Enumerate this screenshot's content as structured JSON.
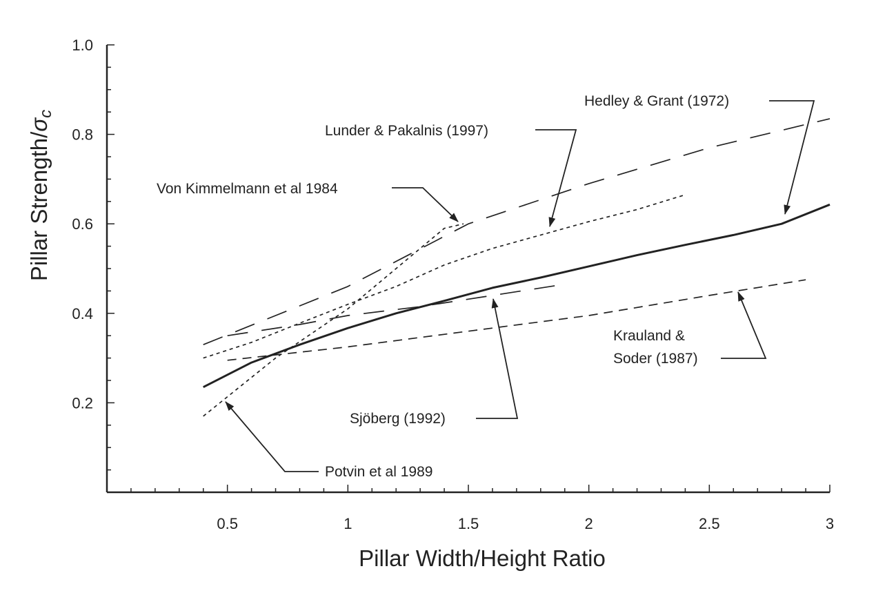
{
  "chart_data": {
    "type": "line",
    "xlabel": "Pillar Width/Height Ratio",
    "ylabel": "Pillar Strength/",
    "ylabel_symbol": "σ",
    "ylabel_subscript": "c",
    "xlim": [
      0,
      3
    ],
    "ylim": [
      0,
      1.0
    ],
    "x_ticks": [
      0.5,
      1,
      1.5,
      2,
      2.5,
      3
    ],
    "x_tick_labels": [
      "0.5",
      "1",
      "1.5",
      "2",
      "2.5",
      "3"
    ],
    "y_ticks": [
      0.2,
      0.4,
      0.6,
      0.8,
      1.0
    ],
    "y_tick_labels": [
      "0.2",
      "0.4",
      "0.6",
      "0.8",
      "1.0"
    ],
    "grid": false,
    "legend": "none",
    "series": [
      {
        "name": "Hedley & Grant (1972)",
        "style": "solid",
        "x": [
          0.4,
          0.6,
          0.8,
          1.0,
          1.2,
          1.4,
          1.6,
          1.8,
          2.0,
          2.2,
          2.4,
          2.6,
          2.8,
          3.0
        ],
        "y": [
          0.235,
          0.29,
          0.33,
          0.367,
          0.4,
          0.428,
          0.457,
          0.48,
          0.505,
          0.53,
          0.553,
          0.575,
          0.6,
          0.643
        ]
      },
      {
        "name": "Lunder & Pakalnis (1997)",
        "style": "short-dash",
        "x": [
          0.4,
          0.6,
          0.8,
          1.0,
          1.2,
          1.4,
          1.6,
          1.8,
          2.0,
          2.2,
          2.4
        ],
        "y": [
          0.3,
          0.335,
          0.378,
          0.42,
          0.46,
          0.508,
          0.545,
          0.575,
          0.605,
          0.632,
          0.665
        ]
      },
      {
        "name": "Von Kimmelmann et al 1984",
        "style": "long-dash",
        "x": [
          0.4,
          1.0,
          1.5,
          2.0,
          2.5,
          3.0
        ],
        "y": [
          0.33,
          0.46,
          0.6,
          0.69,
          0.77,
          0.835
        ]
      },
      {
        "name": "Potvin et al 1989",
        "style": "short-dash",
        "x": [
          0.4,
          0.7,
          1.0,
          1.2,
          1.4,
          1.48
        ],
        "y": [
          0.17,
          0.3,
          0.41,
          0.5,
          0.59,
          0.6
        ]
      },
      {
        "name": "Sjöberg (1992)",
        "style": "long-dash",
        "x": [
          0.5,
          0.8,
          1.0,
          1.3,
          1.6,
          1.9
        ],
        "y": [
          0.35,
          0.375,
          0.395,
          0.415,
          0.44,
          0.465
        ]
      },
      {
        "name": "Krauland & Soder (1987)",
        "style": "medium-dash",
        "x": [
          0.5,
          1.0,
          1.5,
          2.0,
          2.5,
          2.9
        ],
        "y": [
          0.295,
          0.325,
          0.36,
          0.395,
          0.44,
          0.475
        ]
      }
    ],
    "annotations": [
      {
        "text": "Hedley & Grant (1972)",
        "series": 0
      },
      {
        "text": "Lunder & Pakalnis (1997)",
        "series": 1
      },
      {
        "text": "Von Kimmelmann et al 1984",
        "series": 2
      },
      {
        "text": "Potvin et al 1989",
        "series": 3
      },
      {
        "text": "Sjöberg (1992)",
        "series": 4
      },
      {
        "text_line1": "Krauland &",
        "text_line2": "Soder (1987)",
        "series": 5
      }
    ]
  }
}
